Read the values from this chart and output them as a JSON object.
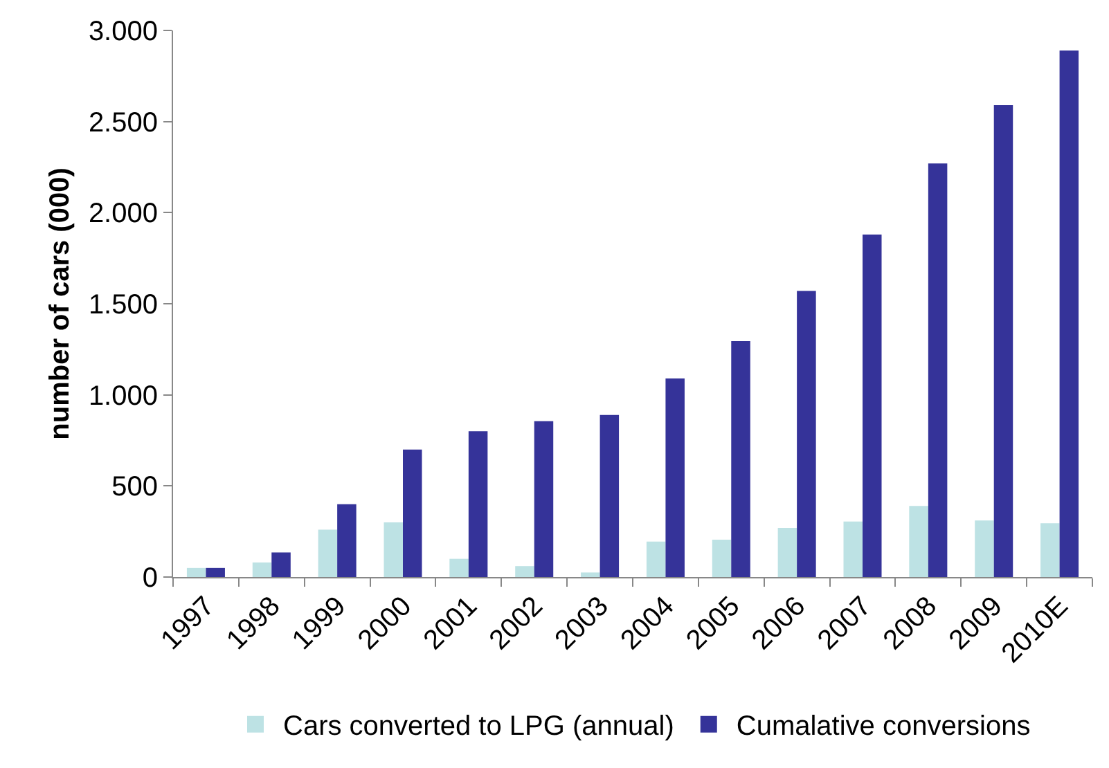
{
  "chart_data": {
    "type": "bar",
    "ylabel": "number of cars (000)",
    "categories": [
      "1997",
      "1998",
      "1999",
      "2000",
      "2001",
      "2002",
      "2003",
      "2004",
      "2005",
      "2006",
      "2007",
      "2008",
      "2009",
      "2010E"
    ],
    "series": [
      {
        "name": "Cars converted to LPG (annual)",
        "color": "#bde2e4",
        "values": [
          50,
          80,
          260,
          300,
          100,
          60,
          25,
          195,
          205,
          270,
          305,
          390,
          310,
          295
        ]
      },
      {
        "name": "Cumalative conversions",
        "color": "#353399",
        "values": [
          50,
          135,
          400,
          700,
          800,
          855,
          890,
          1090,
          1295,
          1570,
          1880,
          2270,
          2590,
          2890
        ]
      }
    ],
    "ylim": [
      0,
      3000
    ],
    "yticks": [
      {
        "value": 0,
        "label": "0"
      },
      {
        "value": 500,
        "label": "500"
      },
      {
        "value": 1000,
        "label": "1.000"
      },
      {
        "value": 1500,
        "label": "1.500"
      },
      {
        "value": 2000,
        "label": "2.000"
      },
      {
        "value": 2500,
        "label": "2.500"
      },
      {
        "value": 3000,
        "label": "3.000"
      }
    ],
    "legend": "bottom"
  }
}
